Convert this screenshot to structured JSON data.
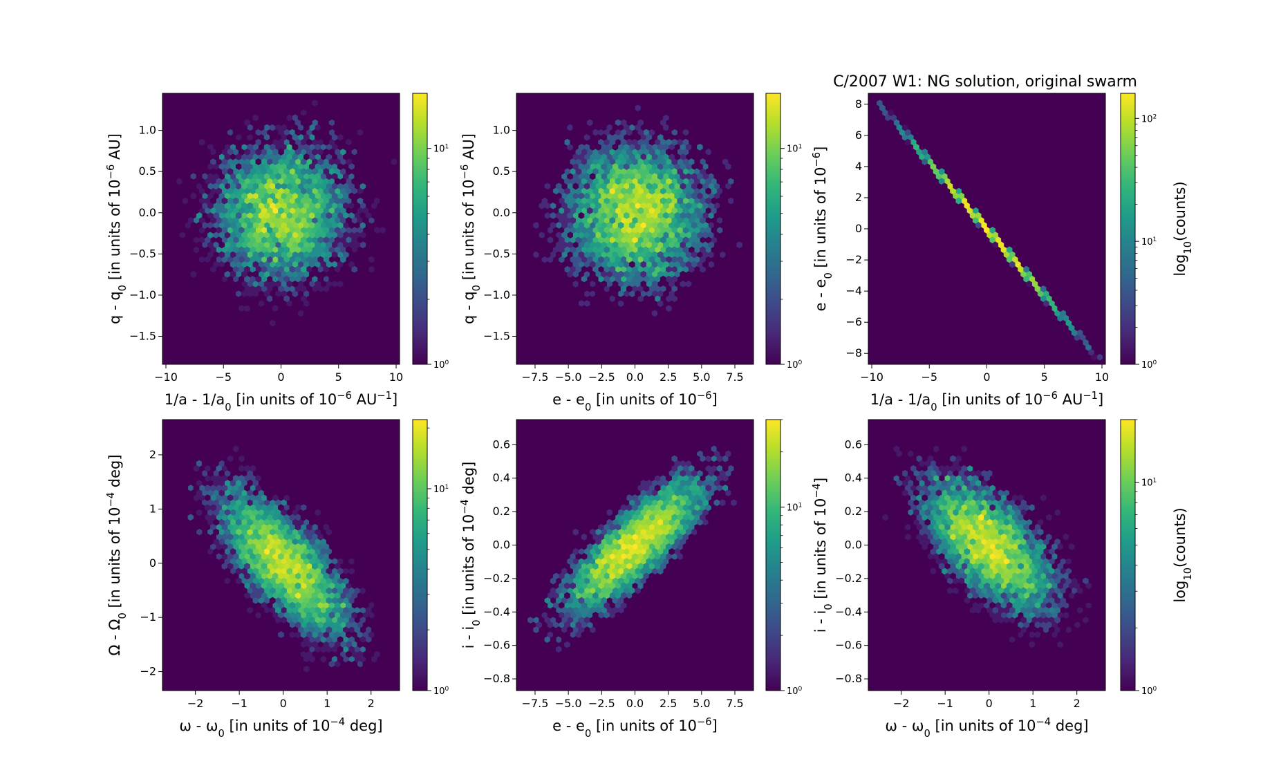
{
  "figure_title": "C/2007 W1:  NG solution, original swarm",
  "colormap": [
    "#440154",
    "#482878",
    "#3e4989",
    "#31688e",
    "#26828e",
    "#1f9e89",
    "#35b779",
    "#6ece58",
    "#b5de2b",
    "#fde725"
  ],
  "background_color": "#440154",
  "cbar_label": "log",
  "cbar_label_sub": "10",
  "cbar_label_tail": "(counts)",
  "chart_data": [
    {
      "type": "hexbin",
      "panel": "a",
      "xlabel": "1/a - 1/a",
      "xlabel_sub": "0",
      "xlabel_tail": " [in units of 10",
      "xlabel_sup": "−6",
      "xlabel_end": " AU",
      "xlabel_sup2": "−1",
      "xlabel_close": "]",
      "ylabel": "q - q",
      "ylabel_sub": "0",
      "ylabel_tail": " [in units of 10",
      "ylabel_sup": "−6",
      "ylabel_end": " AU]",
      "xlim": [
        -10.3,
        10.3
      ],
      "ylim": [
        -1.84,
        1.45
      ],
      "xticks": [
        -10,
        -5,
        0,
        5,
        10
      ],
      "xtick_labels": [
        "−10",
        "−5",
        "0",
        "5",
        "10"
      ],
      "yticks": [
        -1.5,
        -1.0,
        -0.5,
        0.0,
        0.5,
        1.0
      ],
      "ytick_labels": [
        "−1.5",
        "−1.0",
        "−0.5",
        "0.0",
        "0.5",
        "1.0"
      ],
      "scale": "log",
      "cbar_max": 18,
      "cbar_ticks": [
        1,
        10
      ],
      "cbar_exps": [
        "0",
        "1"
      ],
      "cbar_label_shown": false,
      "distribution": {
        "sx": 3.2,
        "sy": 0.45,
        "rho": 0.0,
        "n": 6000,
        "peak_count": 18
      }
    },
    {
      "type": "hexbin",
      "panel": "b",
      "xlabel": "e - e",
      "xlabel_sub": "0",
      "xlabel_tail": " [in units of 10",
      "xlabel_sup": "−6",
      "xlabel_end": "]",
      "ylabel": "q - q",
      "ylabel_sub": "0",
      "ylabel_tail": " [in units of 10",
      "ylabel_sup": "−6",
      "ylabel_end": " AU]",
      "xlim": [
        -8.9,
        8.9
      ],
      "ylim": [
        -1.84,
        1.45
      ],
      "xticks": [
        -7.5,
        -5.0,
        -2.5,
        0.0,
        2.5,
        5.0,
        7.5
      ],
      "xtick_labels": [
        "−7.5",
        "−5.0",
        "−2.5",
        "0.0",
        "2.5",
        "5.0",
        "7.5"
      ],
      "yticks": [
        -1.5,
        -1.0,
        -0.5,
        0.0,
        0.5,
        1.0
      ],
      "ytick_labels": [
        "−1.5",
        "−1.0",
        "−0.5",
        "0.0",
        "0.5",
        "1.0"
      ],
      "scale": "log",
      "cbar_max": 18,
      "cbar_ticks": [
        1,
        10
      ],
      "cbar_exps": [
        "0",
        "1"
      ],
      "cbar_label_shown": false,
      "distribution": {
        "sx": 2.7,
        "sy": 0.45,
        "rho": 0.0,
        "n": 6000,
        "peak_count": 18
      }
    },
    {
      "type": "hexbin",
      "panel": "c",
      "xlabel": "1/a - 1/a",
      "xlabel_sub": "0",
      "xlabel_tail": " [in units of 10",
      "xlabel_sup": "−6",
      "xlabel_end": " AU",
      "xlabel_sup2": "−1",
      "xlabel_close": "]",
      "ylabel": "e - e",
      "ylabel_sub": "0",
      "ylabel_tail": " [in units of 10",
      "ylabel_sup": "−6",
      "ylabel_end": "]",
      "xlim": [
        -10.3,
        10.3
      ],
      "ylim": [
        -8.7,
        8.7
      ],
      "xticks": [
        -10,
        -5,
        0,
        5,
        10
      ],
      "xtick_labels": [
        "−10",
        "−5",
        "0",
        "5",
        "10"
      ],
      "yticks": [
        -8,
        -6,
        -4,
        -2,
        0,
        2,
        4,
        6,
        8
      ],
      "ytick_labels": [
        "−8",
        "−6",
        "−4",
        "−2",
        "0",
        "2",
        "4",
        "6",
        "8"
      ],
      "scale": "log",
      "cbar_max": 160,
      "cbar_ticks": [
        1,
        10,
        100
      ],
      "cbar_exps": [
        "0",
        "1",
        "2"
      ],
      "cbar_label_shown": true,
      "distribution": {
        "line": true,
        "slope": -0.86,
        "sx": 3.2,
        "n": 6000,
        "peak_count": 160
      }
    },
    {
      "type": "hexbin",
      "panel": "d",
      "xlabel": "ω - ω",
      "xlabel_sub": "0",
      "xlabel_tail": " [in units of 10",
      "xlabel_sup": "−4",
      "xlabel_end": " deg]",
      "ylabel": "Ω - Ω",
      "ylabel_sub": "0",
      "ylabel_tail": " [in units of 10",
      "ylabel_sup": "−4",
      "ylabel_end": " deg]",
      "xlim": [
        -2.75,
        2.65
      ],
      "ylim": [
        -2.35,
        2.65
      ],
      "xticks": [
        -2,
        -1,
        0,
        1,
        2
      ],
      "xtick_labels": [
        "−2",
        "−1",
        "0",
        "1",
        "2"
      ],
      "yticks": [
        -2,
        -1,
        0,
        1,
        2
      ],
      "ytick_labels": [
        "−2",
        "−1",
        "0",
        "1",
        "2"
      ],
      "scale": "log",
      "cbar_max": 22,
      "cbar_ticks": [
        1,
        10
      ],
      "cbar_exps": [
        "0",
        "1"
      ],
      "cbar_label_shown": false,
      "distribution": {
        "sx": 0.8,
        "sy": 0.72,
        "rho": -0.72,
        "n": 6000,
        "peak_count": 22
      }
    },
    {
      "type": "hexbin",
      "panel": "e",
      "xlabel": "e - e",
      "xlabel_sub": "0",
      "xlabel_tail": " [in units of 10",
      "xlabel_sup": "−6",
      "xlabel_end": "]",
      "ylabel": "i - i",
      "ylabel_sub": "0",
      "ylabel_tail": " [in units of 10",
      "ylabel_sup": "−4",
      "ylabel_end": " deg]",
      "xlim": [
        -8.9,
        8.9
      ],
      "ylim": [
        -0.87,
        0.75
      ],
      "xticks": [
        -7.5,
        -5.0,
        -2.5,
        0.0,
        2.5,
        5.0,
        7.5
      ],
      "xtick_labels": [
        "−7.5",
        "−5.0",
        "−2.5",
        "0.0",
        "2.5",
        "5.0",
        "7.5"
      ],
      "yticks": [
        -0.8,
        -0.6,
        -0.4,
        -0.2,
        0.0,
        0.2,
        0.4,
        0.6
      ],
      "ytick_labels": [
        "−0.8",
        "−0.6",
        "−0.4",
        "−0.2",
        "0.0",
        "0.2",
        "0.4",
        "0.6"
      ],
      "scale": "log",
      "cbar_max": 30,
      "cbar_ticks": [
        1,
        10
      ],
      "cbar_exps": [
        "0",
        "1"
      ],
      "cbar_label_shown": false,
      "distribution": {
        "sx": 2.7,
        "sy": 0.21,
        "rho": 0.82,
        "n": 6000,
        "peak_count": 30
      }
    },
    {
      "type": "hexbin",
      "panel": "f",
      "xlabel": "ω - ω",
      "xlabel_sub": "0",
      "xlabel_tail": " [in units of 10",
      "xlabel_sup": "−4",
      "xlabel_end": " deg]",
      "ylabel": "i - i",
      "ylabel_sub": "0",
      "ylabel_tail": " [in units of 10",
      "ylabel_sup": "−4",
      "ylabel_end": "]",
      "xlim": [
        -2.75,
        2.65
      ],
      "ylim": [
        -0.87,
        0.75
      ],
      "xticks": [
        -2,
        -1,
        0,
        1,
        2
      ],
      "xtick_labels": [
        "−2",
        "−1",
        "0",
        "1",
        "2"
      ],
      "yticks": [
        -0.8,
        -0.6,
        -0.4,
        -0.2,
        0.0,
        0.2,
        0.4,
        0.6
      ],
      "ytick_labels": [
        "−0.8",
        "−0.6",
        "−0.4",
        "−0.2",
        "0.0",
        "0.2",
        "0.4",
        "0.6"
      ],
      "scale": "log",
      "cbar_max": 20,
      "cbar_ticks": [
        1,
        10
      ],
      "cbar_exps": [
        "0",
        "1"
      ],
      "cbar_label_shown": true,
      "distribution": {
        "sx": 0.8,
        "sy": 0.21,
        "rho": -0.62,
        "n": 6000,
        "peak_count": 20
      }
    }
  ]
}
